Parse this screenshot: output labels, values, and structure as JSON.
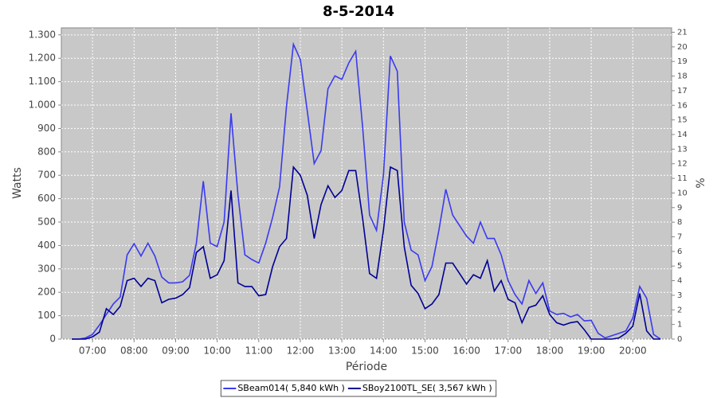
{
  "chart_data": {
    "type": "line",
    "title": "8-5-2014",
    "x_label": "Période",
    "y_label": "Watts",
    "y2_label": "%",
    "x": [
      "06:30",
      "06:40",
      "06:50",
      "07:00",
      "07:10",
      "07:20",
      "07:30",
      "07:40",
      "07:50",
      "08:00",
      "08:10",
      "08:20",
      "08:30",
      "08:40",
      "08:50",
      "09:00",
      "09:10",
      "09:20",
      "09:30",
      "09:40",
      "09:50",
      "10:00",
      "10:10",
      "10:20",
      "10:30",
      "10:40",
      "10:50",
      "11:00",
      "11:10",
      "11:20",
      "11:30",
      "11:40",
      "11:50",
      "12:00",
      "12:10",
      "12:20",
      "12:30",
      "12:40",
      "12:50",
      "13:00",
      "13:10",
      "13:20",
      "13:30",
      "13:40",
      "13:50",
      "14:00",
      "14:10",
      "14:20",
      "14:30",
      "14:40",
      "14:50",
      "15:00",
      "15:10",
      "15:20",
      "15:30",
      "15:40",
      "15:50",
      "16:00",
      "16:10",
      "16:20",
      "16:30",
      "16:40",
      "16:50",
      "17:00",
      "17:10",
      "17:20",
      "17:30",
      "17:40",
      "17:50",
      "18:00",
      "18:10",
      "18:20",
      "18:30",
      "18:40",
      "18:50",
      "19:00",
      "19:10",
      "19:20",
      "19:30",
      "19:40",
      "19:50",
      "20:00",
      "20:10",
      "20:20",
      "20:30",
      "20:40"
    ],
    "series": [
      {
        "name": "SBeam014( 5,840 kWh )",
        "color": "#3a3af0",
        "values": [
          0,
          0,
          5,
          20,
          60,
          105,
          150,
          180,
          360,
          408,
          355,
          410,
          355,
          265,
          240,
          240,
          245,
          272,
          410,
          675,
          410,
          395,
          500,
          965,
          615,
          360,
          340,
          325,
          410,
          520,
          650,
          995,
          1260,
          1195,
          975,
          750,
          805,
          1070,
          1125,
          1110,
          1180,
          1230,
          905,
          530,
          465,
          700,
          1210,
          1145,
          500,
          380,
          360,
          250,
          310,
          465,
          640,
          530,
          485,
          440,
          410,
          500,
          430,
          430,
          360,
          250,
          190,
          150,
          250,
          195,
          240,
          120,
          105,
          110,
          95,
          105,
          78,
          80,
          25,
          5,
          15,
          25,
          35,
          90,
          225,
          175,
          20,
          0
        ]
      },
      {
        "name": "SBoy2100TL_SE( 3,567 kWh )",
        "color": "#000096",
        "values": [
          0,
          0,
          0,
          10,
          30,
          130,
          105,
          140,
          250,
          260,
          225,
          260,
          250,
          155,
          170,
          175,
          190,
          220,
          370,
          395,
          260,
          275,
          335,
          635,
          240,
          225,
          225,
          185,
          190,
          310,
          395,
          430,
          735,
          700,
          615,
          430,
          575,
          655,
          605,
          635,
          720,
          720,
          515,
          280,
          260,
          465,
          735,
          720,
          395,
          230,
          195,
          130,
          150,
          190,
          325,
          325,
          280,
          235,
          275,
          260,
          335,
          205,
          250,
          170,
          155,
          70,
          135,
          145,
          185,
          105,
          70,
          60,
          70,
          75,
          40,
          0,
          0,
          0,
          0,
          5,
          25,
          55,
          195,
          35,
          0,
          0
        ]
      }
    ],
    "xlim": [
      "06:15",
      "20:56"
    ],
    "xticks": [
      "07:00",
      "08:00",
      "09:00",
      "10:00",
      "11:00",
      "12:00",
      "13:00",
      "14:00",
      "15:00",
      "16:00",
      "17:00",
      "18:00",
      "19:00",
      "20:00"
    ],
    "ylim": [
      0,
      1330
    ],
    "yticks": [
      0,
      100,
      200,
      300,
      400,
      500,
      600,
      700,
      800,
      900,
      {
        "value": 1000,
        "label": "1.000"
      },
      {
        "value": 1100,
        "label": "1.100"
      },
      {
        "value": 1200,
        "label": "1.200"
      },
      {
        "value": 1300,
        "label": "1.300"
      }
    ],
    "y2lim": [
      0,
      21.3
    ],
    "y2ticks": [
      0,
      1,
      2,
      3,
      4,
      5,
      6,
      7,
      8,
      9,
      10,
      11,
      12,
      13,
      14,
      15,
      16,
      17,
      18,
      19,
      20,
      21
    ],
    "grid": true,
    "plot_background": "#c8c8c8",
    "legend": "bottom"
  }
}
